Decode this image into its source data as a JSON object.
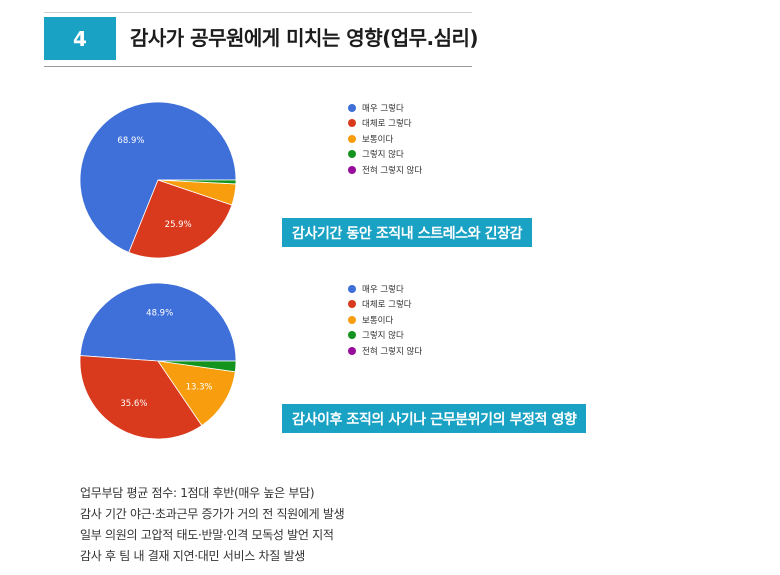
{
  "header": {
    "number": "4",
    "title": "감사가 공무원에게 미치는 영향(업무.심리)"
  },
  "legend_labels": [
    "매우 그렇다",
    "대체로 그렇다",
    "보통이다",
    "그렇지 않다",
    "전혀 그렇지 않다"
  ],
  "colors": [
    "#3f6fd8",
    "#d9391d",
    "#f89d0e",
    "#14941e",
    "#970c9a"
  ],
  "chart_data": [
    {
      "type": "pie",
      "labels": [
        "매우 그렇다",
        "대체로 그렇다",
        "보통이다",
        "그렇지 않다",
        "전혀 그렇지 않다"
      ],
      "values": [
        68.9,
        25.9,
        4.4,
        0.8,
        0.0
      ],
      "data_labels": [
        "68.9%",
        "25.9%",
        "",
        "",
        ""
      ],
      "legend": "right"
    },
    {
      "type": "pie",
      "labels": [
        "매우 그렇다",
        "대체로 그렇다",
        "보통이다",
        "그렇지 않다",
        "전혀 그렇지 않다"
      ],
      "values": [
        48.9,
        35.6,
        13.3,
        2.2,
        0.0
      ],
      "data_labels": [
        "48.9%",
        "35.6%",
        "13.3%",
        "",
        ""
      ],
      "legend": "right"
    }
  ],
  "callouts": [
    "감사기간 동안 조직내 스트레스와 긴장감",
    "감사이후 조직의 사기나 근무분위기의 부정적 영향"
  ],
  "summary": [
    "업무부담 평균 점수: 1점대 후반(매우 높은 부담)",
    "감사 기간 야근·초과근무 증가가 거의 전 직원에게 발생",
    "일부 의원의 고압적 태도·반말·인격 모독성 발언 지적",
    "감사 후 팀 내 결재 지연·대민 서비스 차질 발생"
  ]
}
